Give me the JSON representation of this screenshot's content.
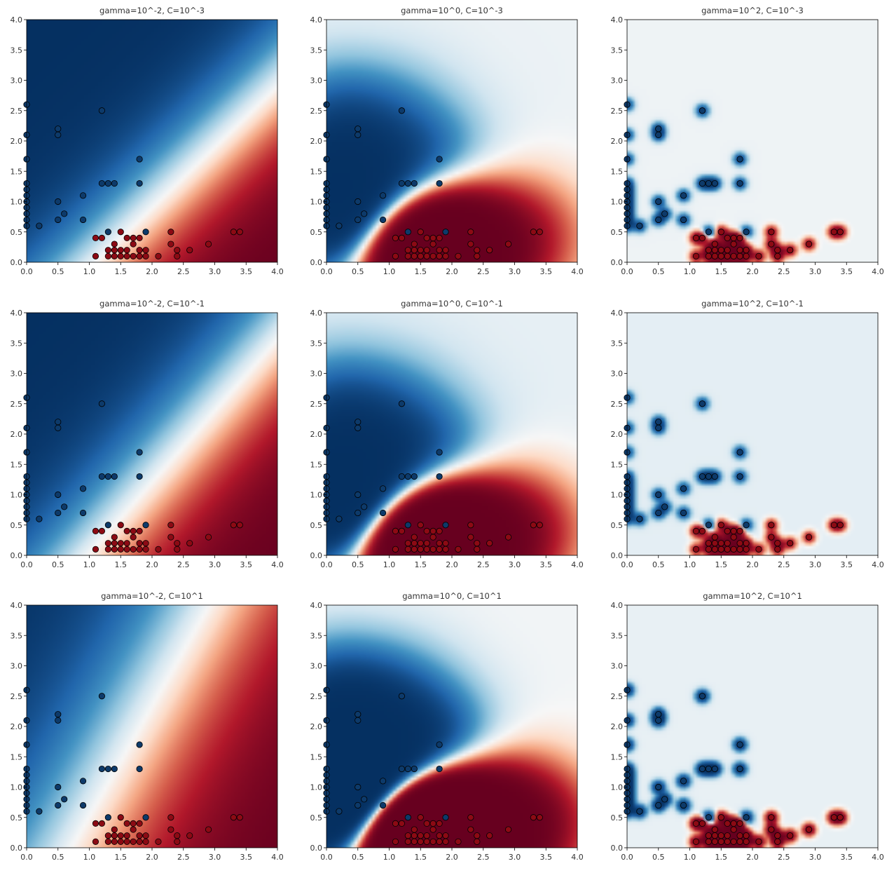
{
  "figure": {
    "grid": "3x3",
    "colormap": "RdBu",
    "point_edge_color": "#000000"
  },
  "colors": {
    "class_0": "#0d3a6a",
    "class_1": "#8c0a14",
    "edge": "#000000"
  },
  "points": {
    "class_0": [
      [
        0.0,
        0.6
      ],
      [
        0.0,
        0.7
      ],
      [
        0.0,
        0.8
      ],
      [
        0.0,
        0.9
      ],
      [
        0.0,
        1.0
      ],
      [
        0.0,
        1.1
      ],
      [
        0.0,
        1.2
      ],
      [
        0.0,
        1.3
      ],
      [
        0.0,
        1.7
      ],
      [
        0.0,
        2.1
      ],
      [
        0.0,
        2.6
      ],
      [
        0.2,
        0.6
      ],
      [
        0.5,
        0.7
      ],
      [
        0.5,
        1.0
      ],
      [
        0.5,
        2.1
      ],
      [
        0.5,
        2.2
      ],
      [
        0.6,
        0.8
      ],
      [
        0.9,
        0.7
      ],
      [
        0.9,
        1.1
      ],
      [
        1.2,
        1.3
      ],
      [
        1.2,
        2.5
      ],
      [
        1.3,
        0.5
      ],
      [
        1.3,
        1.3
      ],
      [
        1.4,
        1.3
      ],
      [
        1.8,
        1.3
      ],
      [
        1.8,
        1.7
      ],
      [
        1.9,
        0.5
      ]
    ],
    "class_1": [
      [
        1.1,
        0.1
      ],
      [
        1.1,
        0.4
      ],
      [
        1.2,
        0.4
      ],
      [
        1.3,
        0.1
      ],
      [
        1.3,
        0.2
      ],
      [
        1.4,
        0.1
      ],
      [
        1.4,
        0.2
      ],
      [
        1.4,
        0.3
      ],
      [
        1.5,
        0.1
      ],
      [
        1.5,
        0.2
      ],
      [
        1.5,
        0.5
      ],
      [
        1.6,
        0.1
      ],
      [
        1.6,
        0.2
      ],
      [
        1.6,
        0.4
      ],
      [
        1.7,
        0.1
      ],
      [
        1.7,
        0.3
      ],
      [
        1.7,
        0.4
      ],
      [
        1.8,
        0.1
      ],
      [
        1.8,
        0.2
      ],
      [
        1.8,
        0.4
      ],
      [
        1.9,
        0.1
      ],
      [
        1.9,
        0.2
      ],
      [
        2.1,
        0.1
      ],
      [
        2.3,
        0.3
      ],
      [
        2.3,
        0.5
      ],
      [
        2.4,
        0.1
      ],
      [
        2.4,
        0.2
      ],
      [
        2.6,
        0.2
      ],
      [
        2.9,
        0.3
      ],
      [
        3.3,
        0.5
      ],
      [
        3.4,
        0.5
      ]
    ]
  },
  "chart_data": [
    {
      "type": "heatmap",
      "title": "gamma=10^-2, C=10^-3",
      "gamma": 0.01,
      "C": 0.001,
      "xlim": [
        0,
        4
      ],
      "ylim": [
        0,
        4
      ],
      "xticks": [
        "0.0",
        "0.5",
        "1.0",
        "1.5",
        "2.0",
        "2.5",
        "3.0",
        "3.5",
        "4.0"
      ],
      "yticks": [
        "0.0",
        "0.5",
        "1.0",
        "1.5",
        "2.0",
        "2.5",
        "3.0",
        "3.5",
        "4.0"
      ]
    },
    {
      "type": "heatmap",
      "title": "gamma=10^0, C=10^-3",
      "gamma": 1,
      "C": 0.001,
      "xlim": [
        0,
        4
      ],
      "ylim": [
        0,
        4
      ],
      "xticks": [
        "0.0",
        "0.5",
        "1.0",
        "1.5",
        "2.0",
        "2.5",
        "3.0",
        "3.5",
        "4.0"
      ],
      "yticks": [
        "0.0",
        "0.5",
        "1.0",
        "1.5",
        "2.0",
        "2.5",
        "3.0",
        "3.5",
        "4.0"
      ]
    },
    {
      "type": "heatmap",
      "title": "gamma=10^2, C=10^-3",
      "gamma": 100,
      "C": 0.001,
      "xlim": [
        0,
        4
      ],
      "ylim": [
        0,
        4
      ],
      "xticks": [
        "0.0",
        "0.5",
        "1.0",
        "1.5",
        "2.0",
        "2.5",
        "3.0",
        "3.5",
        "4.0"
      ],
      "yticks": [
        "0.0",
        "0.5",
        "1.0",
        "1.5",
        "2.0",
        "2.5",
        "3.0",
        "3.5",
        "4.0"
      ]
    },
    {
      "type": "heatmap",
      "title": "gamma=10^-2, C=10^-1",
      "gamma": 0.01,
      "C": 0.1,
      "xlim": [
        0,
        4
      ],
      "ylim": [
        0,
        4
      ],
      "xticks": [
        "0.0",
        "0.5",
        "1.0",
        "1.5",
        "2.0",
        "2.5",
        "3.0",
        "3.5",
        "4.0"
      ],
      "yticks": [
        "0.0",
        "0.5",
        "1.0",
        "1.5",
        "2.0",
        "2.5",
        "3.0",
        "3.5",
        "4.0"
      ]
    },
    {
      "type": "heatmap",
      "title": "gamma=10^0, C=10^-1",
      "gamma": 1,
      "C": 0.1,
      "xlim": [
        0,
        4
      ],
      "ylim": [
        0,
        4
      ],
      "xticks": [
        "0.0",
        "0.5",
        "1.0",
        "1.5",
        "2.0",
        "2.5",
        "3.0",
        "3.5",
        "4.0"
      ],
      "yticks": [
        "0.0",
        "0.5",
        "1.0",
        "1.5",
        "2.0",
        "2.5",
        "3.0",
        "3.5",
        "4.0"
      ]
    },
    {
      "type": "heatmap",
      "title": "gamma=10^2, C=10^-1",
      "gamma": 100,
      "C": 0.1,
      "xlim": [
        0,
        4
      ],
      "ylim": [
        0,
        4
      ],
      "xticks": [
        "0.0",
        "0.5",
        "1.0",
        "1.5",
        "2.0",
        "2.5",
        "3.0",
        "3.5",
        "4.0"
      ],
      "yticks": [
        "0.0",
        "0.5",
        "1.0",
        "1.5",
        "2.0",
        "2.5",
        "3.0",
        "3.5",
        "4.0"
      ]
    },
    {
      "type": "heatmap",
      "title": "gamma=10^-2, C=10^1",
      "gamma": 0.01,
      "C": 10,
      "xlim": [
        0,
        4
      ],
      "ylim": [
        0,
        4
      ],
      "xticks": [
        "0.0",
        "0.5",
        "1.0",
        "1.5",
        "2.0",
        "2.5",
        "3.0",
        "3.5",
        "4.0"
      ],
      "yticks": [
        "0.0",
        "0.5",
        "1.0",
        "1.5",
        "2.0",
        "2.5",
        "3.0",
        "3.5",
        "4.0"
      ]
    },
    {
      "type": "heatmap",
      "title": "gamma=10^0, C=10^1",
      "gamma": 1,
      "C": 10,
      "xlim": [
        0,
        4
      ],
      "ylim": [
        0,
        4
      ],
      "xticks": [
        "0.0",
        "0.5",
        "1.0",
        "1.5",
        "2.0",
        "2.5",
        "3.0",
        "3.5",
        "4.0"
      ],
      "yticks": [
        "0.0",
        "0.5",
        "1.0",
        "1.5",
        "2.0",
        "2.5",
        "3.0",
        "3.5",
        "4.0"
      ]
    },
    {
      "type": "heatmap",
      "title": "gamma=10^2, C=10^1",
      "gamma": 100,
      "C": 10,
      "xlim": [
        0,
        4
      ],
      "ylim": [
        0,
        4
      ],
      "xticks": [
        "0.0",
        "0.5",
        "1.0",
        "1.5",
        "2.0",
        "2.5",
        "3.0",
        "3.5",
        "4.0"
      ],
      "yticks": [
        "0.0",
        "0.5",
        "1.0",
        "1.5",
        "2.0",
        "2.5",
        "3.0",
        "3.5",
        "4.0"
      ]
    }
  ]
}
